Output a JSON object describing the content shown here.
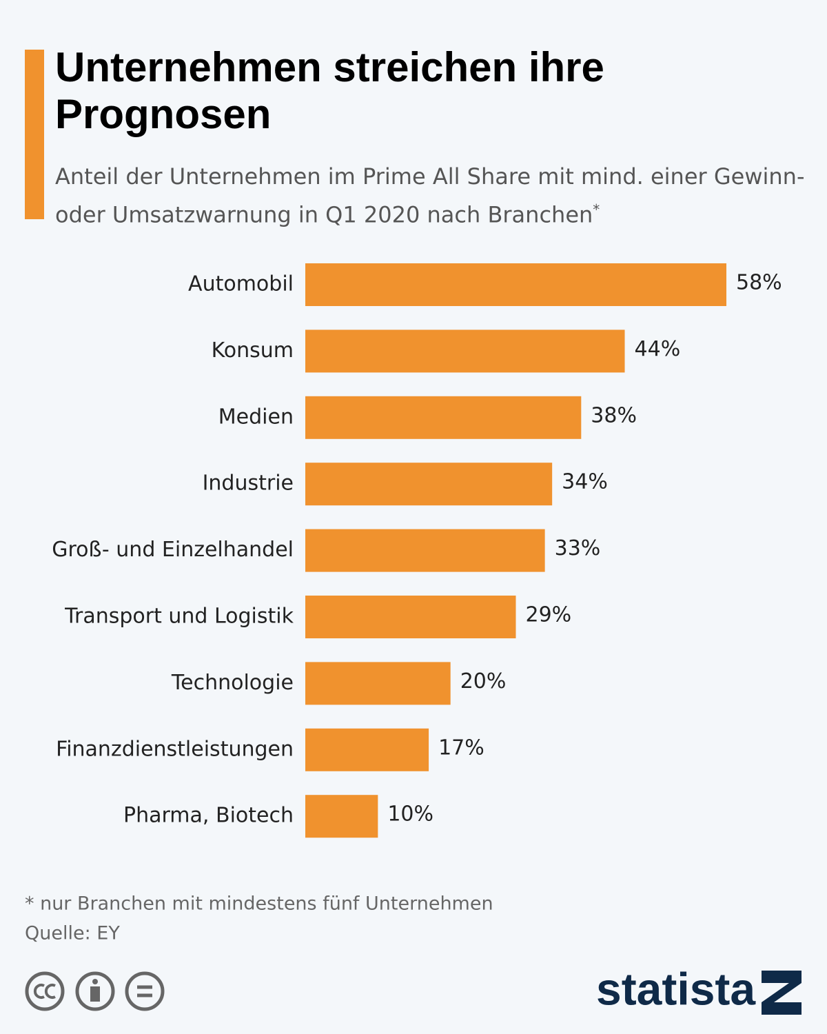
{
  "chart_data": {
    "type": "bar",
    "orientation": "horizontal",
    "title": "Unternehmen streichen ihre Prognosen",
    "subtitle": "Anteil der Unternehmen im Prime All Share mit mind. einer Gewinn- oder Umsatzwarnung in Q1 2020 nach Branchen",
    "subtitle_marker": "*",
    "categories": [
      "Automobil",
      "Konsum",
      "Medien",
      "Industrie",
      "Groß- und Einzelhandel",
      "Transport und Logistik",
      "Technologie",
      "Finanzdienstleistungen",
      "Pharma, Biotech"
    ],
    "values": [
      58,
      44,
      38,
      34,
      33,
      29,
      20,
      17,
      10
    ],
    "value_labels": [
      "58%",
      "44%",
      "38%",
      "34%",
      "33%",
      "29%",
      "20%",
      "17%",
      "10%"
    ],
    "color": "#f0922e",
    "footnote": "* nur Branchen mit mindestens fünf Unternehmen",
    "source": "Quelle: EY",
    "brand": "statista"
  }
}
